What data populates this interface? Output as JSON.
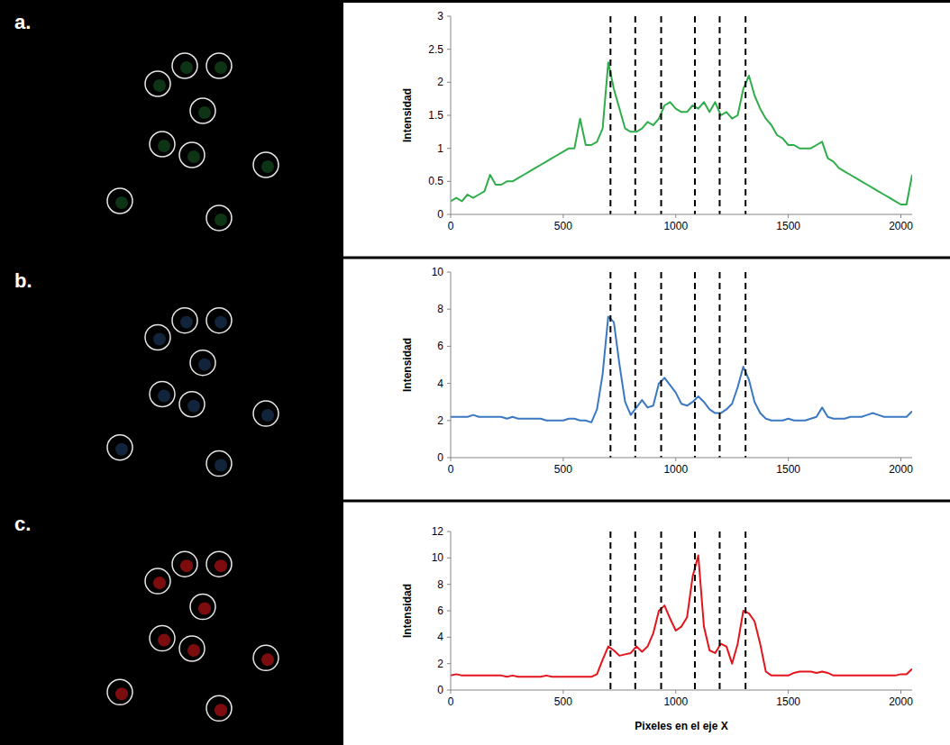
{
  "chart_data": [
    {
      "type": "line",
      "panel": "a.",
      "y_label": "Intensidad",
      "color": "#2fad4a",
      "grid": false,
      "xlim": [
        0,
        2050
      ],
      "xticks": [
        0,
        500,
        1000,
        1500,
        2000
      ],
      "ylim": [
        0,
        3
      ],
      "yticks": [
        0,
        0.5,
        1,
        1.5,
        2,
        2.5,
        3
      ],
      "vlines": [
        710,
        820,
        935,
        1085,
        1195,
        1310
      ],
      "x": [
        0,
        25,
        50,
        75,
        100,
        125,
        150,
        175,
        200,
        225,
        250,
        275,
        300,
        325,
        350,
        375,
        400,
        425,
        450,
        475,
        500,
        525,
        550,
        575,
        600,
        625,
        650,
        675,
        700,
        725,
        750,
        775,
        800,
        825,
        850,
        875,
        900,
        925,
        950,
        975,
        1000,
        1025,
        1050,
        1075,
        1100,
        1125,
        1150,
        1175,
        1200,
        1225,
        1250,
        1275,
        1300,
        1325,
        1350,
        1375,
        1400,
        1425,
        1450,
        1475,
        1500,
        1525,
        1550,
        1575,
        1600,
        1625,
        1650,
        1675,
        1700,
        1725,
        1750,
        1775,
        1800,
        1825,
        1850,
        1875,
        1900,
        1925,
        1950,
        1975,
        2000,
        2025,
        2050
      ],
      "values": [
        0.2,
        0.25,
        0.2,
        0.3,
        0.25,
        0.3,
        0.35,
        0.6,
        0.45,
        0.45,
        0.5,
        0.5,
        0.55,
        0.6,
        0.65,
        0.7,
        0.75,
        0.8,
        0.85,
        0.9,
        0.95,
        1.0,
        1.0,
        1.45,
        1.05,
        1.05,
        1.1,
        1.3,
        2.3,
        1.9,
        1.6,
        1.3,
        1.25,
        1.25,
        1.3,
        1.4,
        1.35,
        1.45,
        1.65,
        1.7,
        1.6,
        1.55,
        1.55,
        1.65,
        1.6,
        1.7,
        1.55,
        1.7,
        1.5,
        1.55,
        1.45,
        1.5,
        1.9,
        2.1,
        1.8,
        1.6,
        1.45,
        1.35,
        1.2,
        1.15,
        1.05,
        1.05,
        1.0,
        1.0,
        1.0,
        1.05,
        1.1,
        0.85,
        0.8,
        0.7,
        0.65,
        0.6,
        0.55,
        0.5,
        0.45,
        0.4,
        0.35,
        0.3,
        0.25,
        0.2,
        0.15,
        0.15,
        0.6
      ]
    },
    {
      "type": "line",
      "panel": "b.",
      "y_label": "Intensidad",
      "color": "#3b78c2",
      "grid": false,
      "xlim": [
        0,
        2050
      ],
      "xticks": [
        0,
        500,
        1000,
        1500,
        2000
      ],
      "ylim": [
        0,
        10
      ],
      "yticks": [
        0,
        2,
        4,
        6,
        8,
        10
      ],
      "vlines": [
        710,
        820,
        935,
        1085,
        1195,
        1310
      ],
      "x": [
        0,
        25,
        50,
        75,
        100,
        125,
        150,
        175,
        200,
        225,
        250,
        275,
        300,
        325,
        350,
        375,
        400,
        425,
        450,
        475,
        500,
        525,
        550,
        575,
        600,
        625,
        650,
        675,
        700,
        725,
        750,
        775,
        800,
        825,
        850,
        875,
        900,
        925,
        950,
        975,
        1000,
        1025,
        1050,
        1075,
        1100,
        1125,
        1150,
        1175,
        1200,
        1225,
        1250,
        1275,
        1300,
        1325,
        1350,
        1375,
        1400,
        1425,
        1450,
        1475,
        1500,
        1525,
        1550,
        1575,
        1600,
        1625,
        1650,
        1675,
        1700,
        1725,
        1750,
        1775,
        1800,
        1825,
        1850,
        1875,
        1900,
        1925,
        1950,
        1975,
        2000,
        2025,
        2050
      ],
      "values": [
        2.2,
        2.2,
        2.2,
        2.2,
        2.3,
        2.2,
        2.2,
        2.2,
        2.2,
        2.2,
        2.1,
        2.2,
        2.1,
        2.1,
        2.1,
        2.1,
        2.1,
        2.0,
        2.0,
        2.0,
        2.0,
        2.1,
        2.1,
        2.0,
        2.0,
        1.9,
        2.6,
        4.5,
        7.6,
        7.3,
        5.0,
        3.0,
        2.3,
        2.7,
        3.1,
        2.7,
        2.8,
        4.0,
        4.3,
        3.9,
        3.5,
        2.9,
        2.8,
        3.0,
        3.3,
        3.0,
        2.6,
        2.4,
        2.4,
        2.6,
        2.9,
        3.8,
        4.9,
        4.2,
        3.0,
        2.4,
        2.1,
        2.0,
        2.0,
        2.0,
        2.1,
        2.0,
        2.0,
        2.0,
        2.1,
        2.2,
        2.7,
        2.2,
        2.1,
        2.1,
        2.1,
        2.2,
        2.2,
        2.2,
        2.3,
        2.4,
        2.3,
        2.2,
        2.2,
        2.2,
        2.2,
        2.2,
        2.5
      ]
    },
    {
      "type": "line",
      "panel": "c.",
      "y_label": "Intensidad",
      "x_label": "Pixeles en el eje X",
      "color": "#e3151c",
      "grid": false,
      "xlim": [
        0,
        2050
      ],
      "xticks": [
        0,
        500,
        1000,
        1500,
        2000
      ],
      "ylim": [
        0,
        12
      ],
      "yticks": [
        0,
        2,
        4,
        6,
        8,
        10,
        12
      ],
      "vlines": [
        710,
        820,
        935,
        1085,
        1195,
        1310
      ],
      "x": [
        0,
        25,
        50,
        75,
        100,
        125,
        150,
        175,
        200,
        225,
        250,
        275,
        300,
        325,
        350,
        375,
        400,
        425,
        450,
        475,
        500,
        525,
        550,
        575,
        600,
        625,
        650,
        675,
        700,
        725,
        750,
        775,
        800,
        825,
        850,
        875,
        900,
        925,
        950,
        975,
        1000,
        1025,
        1050,
        1075,
        1100,
        1125,
        1150,
        1175,
        1200,
        1225,
        1250,
        1275,
        1300,
        1325,
        1350,
        1375,
        1400,
        1425,
        1450,
        1475,
        1500,
        1525,
        1550,
        1575,
        1600,
        1625,
        1650,
        1675,
        1700,
        1725,
        1750,
        1775,
        1800,
        1825,
        1850,
        1875,
        1900,
        1925,
        1950,
        1975,
        2000,
        2025,
        2050
      ],
      "values": [
        1.1,
        1.2,
        1.1,
        1.1,
        1.1,
        1.1,
        1.1,
        1.1,
        1.1,
        1.1,
        1.0,
        1.1,
        1.0,
        1.0,
        1.0,
        1.0,
        1.0,
        1.1,
        1.0,
        1.0,
        1.0,
        1.0,
        1.0,
        1.0,
        1.0,
        1.0,
        1.2,
        2.3,
        3.3,
        3.0,
        2.6,
        2.7,
        2.8,
        3.3,
        2.9,
        3.3,
        4.3,
        6.0,
        6.4,
        5.4,
        4.5,
        4.8,
        5.5,
        8.6,
        10.2,
        4.8,
        3.0,
        2.8,
        3.5,
        3.3,
        2.0,
        3.5,
        6.0,
        5.8,
        5.2,
        3.5,
        1.4,
        1.1,
        1.1,
        1.1,
        1.1,
        1.3,
        1.4,
        1.4,
        1.4,
        1.3,
        1.4,
        1.3,
        1.1,
        1.1,
        1.1,
        1.1,
        1.1,
        1.1,
        1.1,
        1.1,
        1.1,
        1.1,
        1.1,
        1.1,
        1.2,
        1.2,
        1.6
      ]
    }
  ]
}
